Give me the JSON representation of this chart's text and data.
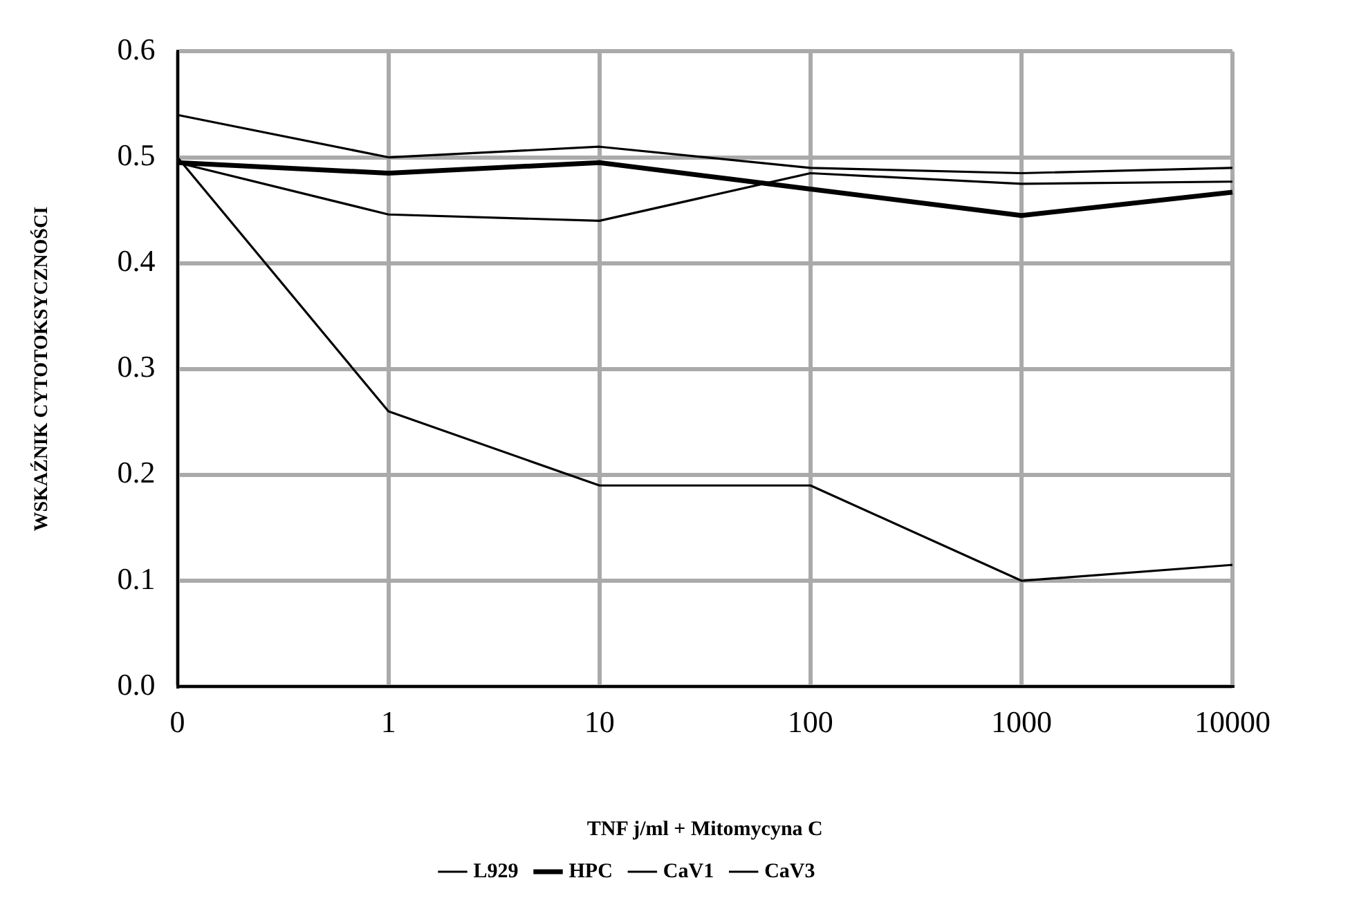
{
  "chart_data": {
    "type": "line",
    "xlabel": "TNF j/ml + Mitomycyna C",
    "ylabel": "WSKAŹNIK CYTOTOKSYCZNOŚCI",
    "categories": [
      "0",
      "1",
      "10",
      "100",
      "1000",
      "10000"
    ],
    "series": [
      {
        "name": "L929",
        "color": "#000000",
        "values": [
          0.5,
          0.26,
          0.19,
          0.19,
          0.1,
          0.115
        ]
      },
      {
        "name": "HPC",
        "color": "#000000",
        "values": [
          0.495,
          0.485,
          0.495,
          0.47,
          0.445,
          0.467
        ]
      },
      {
        "name": "CaV1",
        "color": "#000000",
        "values": [
          0.495,
          0.446,
          0.44,
          0.485,
          0.475,
          0.477
        ]
      },
      {
        "name": "CaV3",
        "color": "#000000",
        "values": [
          0.54,
          0.5,
          0.51,
          0.49,
          0.485,
          0.49
        ]
      }
    ],
    "ylim": [
      0,
      0.6
    ],
    "yticks": [
      {
        "value": 0,
        "label": "0.0"
      },
      0.1,
      0.2,
      0.3,
      0.4,
      0.5,
      0.6
    ],
    "grid": true,
    "legend": "bottom",
    "marker": "none",
    "line_style": "solid"
  }
}
